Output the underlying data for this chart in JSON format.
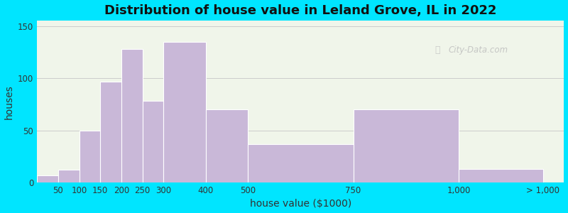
{
  "title": "Distribution of house value in Leland Grove, IL in 2022",
  "xlabel": "house value ($1000)",
  "ylabel": "houses",
  "bar_lefts": [
    0,
    50,
    100,
    150,
    200,
    250,
    300,
    400,
    500,
    750,
    1000
  ],
  "bar_rights": [
    50,
    100,
    150,
    200,
    250,
    300,
    400,
    500,
    750,
    1000,
    1200
  ],
  "bar_heights": [
    7,
    12,
    50,
    97,
    128,
    78,
    135,
    70,
    37,
    70,
    13
  ],
  "xtick_positions": [
    50,
    100,
    150,
    200,
    250,
    300,
    400,
    500,
    750,
    1000,
    1200
  ],
  "xtick_labels": [
    "50",
    "100",
    "150",
    "200",
    "250",
    "300",
    "400",
    "500",
    "750",
    "1,000",
    "> 1,000"
  ],
  "bar_color": "#c9b8d8",
  "bar_edge_color": "#ffffff",
  "ylim": [
    0,
    155
  ],
  "xlim": [
    0,
    1250
  ],
  "yticks": [
    0,
    50,
    100,
    150
  ],
  "background_outer": "#00e5ff",
  "background_inner": "#f0f5ea",
  "grid_color": "#cccccc",
  "title_fontsize": 13,
  "axis_label_fontsize": 10,
  "tick_fontsize": 8.5,
  "watermark_text": "City-Data.com",
  "watermark_color": "#bbbbbb"
}
